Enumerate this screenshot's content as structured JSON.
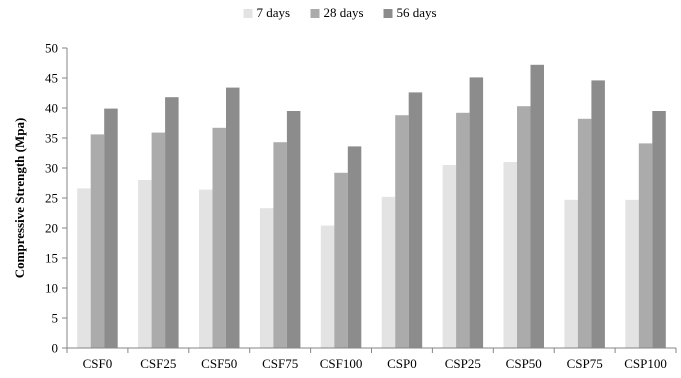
{
  "chart_data": {
    "type": "bar",
    "title": "",
    "xlabel": "",
    "ylabel": "Compressive Strength (Mpa)",
    "ylim": [
      0,
      50
    ],
    "yticks": [
      0,
      5,
      10,
      15,
      20,
      25,
      30,
      35,
      40,
      45,
      50
    ],
    "grid": false,
    "legend_position": "top-center",
    "categories": [
      "CSF0",
      "CSF25",
      "CSF50",
      "CSF75",
      "CSF100",
      "CSP0",
      "CSP25",
      "CSP50",
      "CSP75",
      "CSP100"
    ],
    "series": [
      {
        "name": "7 days",
        "color": "#e3e3e3",
        "values": [
          26.6,
          28.0,
          26.4,
          23.3,
          20.4,
          25.2,
          30.5,
          31.0,
          24.7,
          24.7
        ]
      },
      {
        "name": "28 days",
        "color": "#ababab",
        "values": [
          35.6,
          35.9,
          36.7,
          34.3,
          29.2,
          38.8,
          39.2,
          40.3,
          38.2,
          34.1
        ]
      },
      {
        "name": "56 days",
        "color": "#8c8c8c",
        "values": [
          39.9,
          41.8,
          43.4,
          39.5,
          33.6,
          42.6,
          45.1,
          47.2,
          44.6,
          39.5
        ]
      }
    ]
  }
}
